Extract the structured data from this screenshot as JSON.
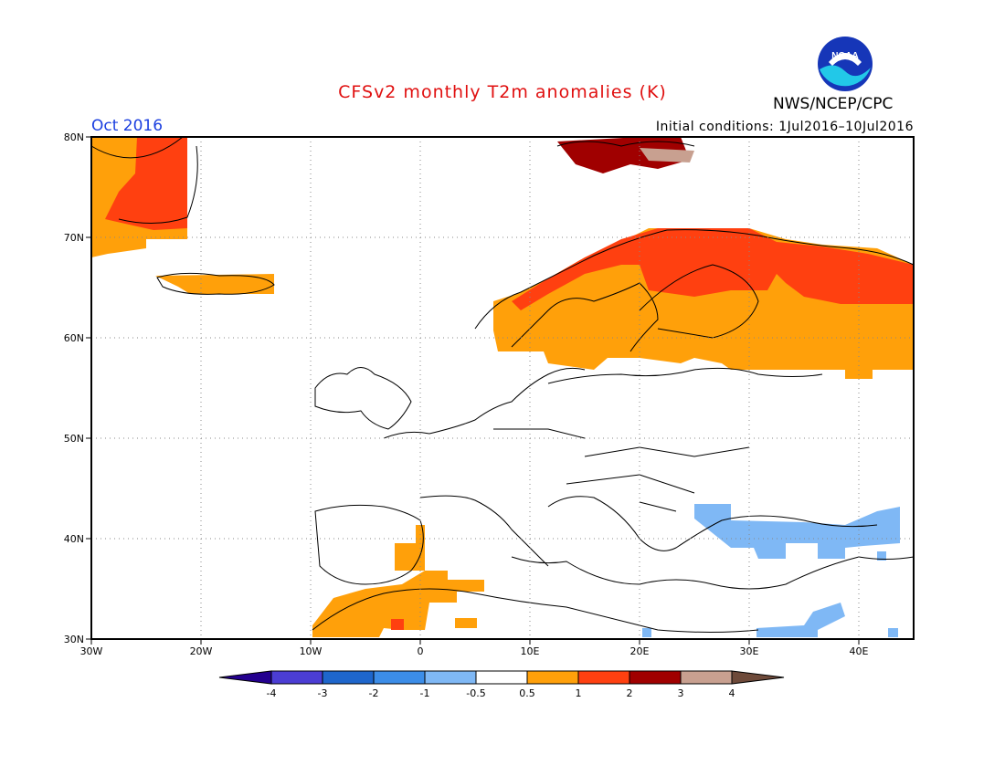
{
  "header": {
    "title": "CFSv2 monthly T2m anomalies (K)",
    "organization": "NWS/NCEP/CPC",
    "logo_text": "NOAA",
    "valid_month": "Oct 2016",
    "initial_conditions": "Initial conditions: 1Jul2016–10Jul2016"
  },
  "map": {
    "lon_range": [
      -30,
      45
    ],
    "lat_range": [
      30,
      80
    ],
    "grid": true,
    "lon_labels": [
      "30W",
      "20W",
      "10W",
      "0",
      "10E",
      "20E",
      "30E",
      "40E"
    ],
    "lat_labels": [
      "30N",
      "40N",
      "50N",
      "60N",
      "70N",
      "80N"
    ]
  },
  "colorbar": {
    "colors": [
      "#24008f",
      "#4b3dd4",
      "#1e66cc",
      "#3c8de8",
      "#7fb8f5",
      "#ffffff",
      "#ffa00a",
      "#ff4010",
      "#a00000",
      "#c8a090",
      "#6e4a3a"
    ],
    "labels": [
      "-4",
      "-3",
      "-2",
      "-1",
      "-0.5",
      "0.5",
      "1",
      "2",
      "3",
      "4"
    ]
  }
}
